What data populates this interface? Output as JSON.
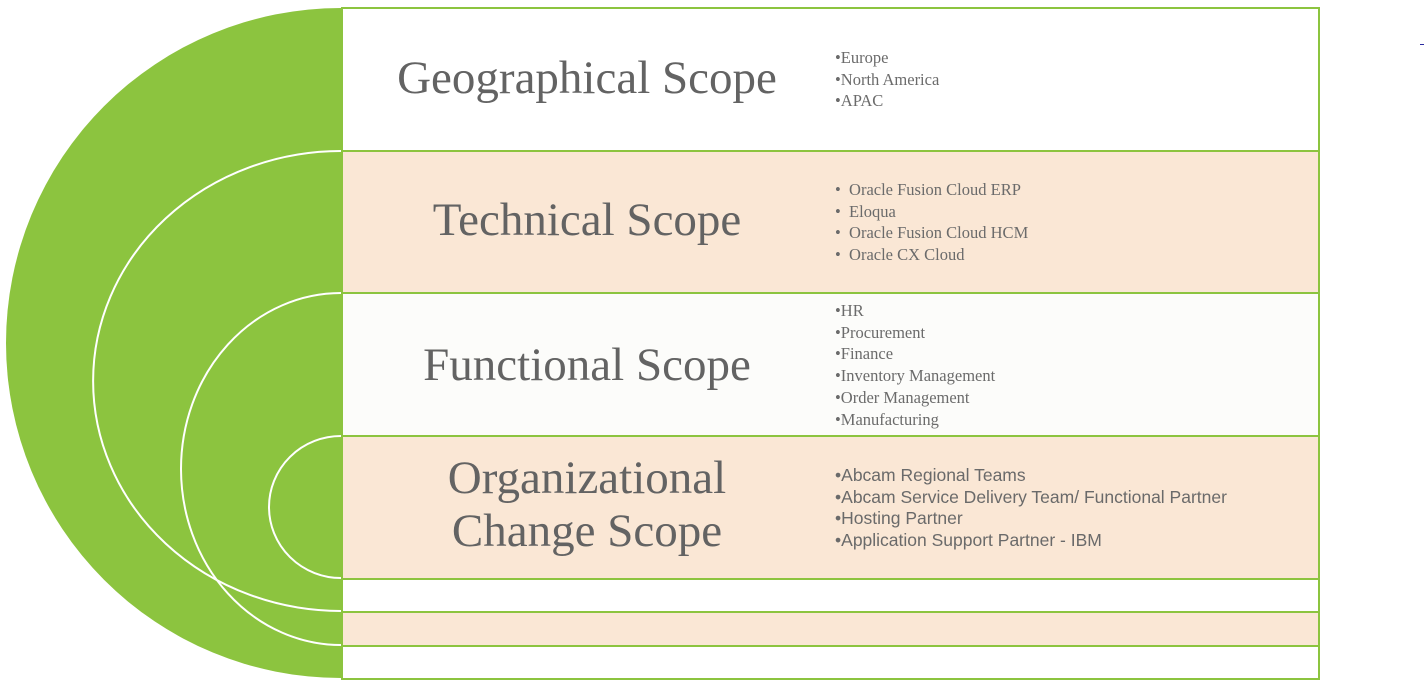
{
  "colors": {
    "arc_green": "#8cc43f",
    "arc_outline": "#ffffff",
    "band_white": "#ffffff",
    "band_peach": "#fae7d5",
    "band_light": "#fcfcfa",
    "text_gray": "#636363"
  },
  "sections": [
    {
      "title_lines": [
        "Geographical Scope"
      ],
      "bullets": [
        "Europe",
        "North America",
        "APAC"
      ]
    },
    {
      "title_lines": [
        "Technical Scope"
      ],
      "bullets": [
        "Oracle Fusion Cloud ERP",
        "Eloqua",
        "Oracle Fusion Cloud HCM",
        "Oracle CX Cloud"
      ]
    },
    {
      "title_lines": [
        "Functional Scope"
      ],
      "bullets": [
        "HR",
        "Procurement",
        "Finance",
        "Inventory Management",
        "Order Management",
        "Manufacturing"
      ]
    },
    {
      "title_lines": [
        "Organizational",
        "Change Scope"
      ],
      "bullets": [
        "Abcam Regional Teams",
        "Abcam Service Delivery Team/ Functional Partner",
        "Hosting Partner",
        "Application Support Partner - IBM"
      ]
    }
  ]
}
